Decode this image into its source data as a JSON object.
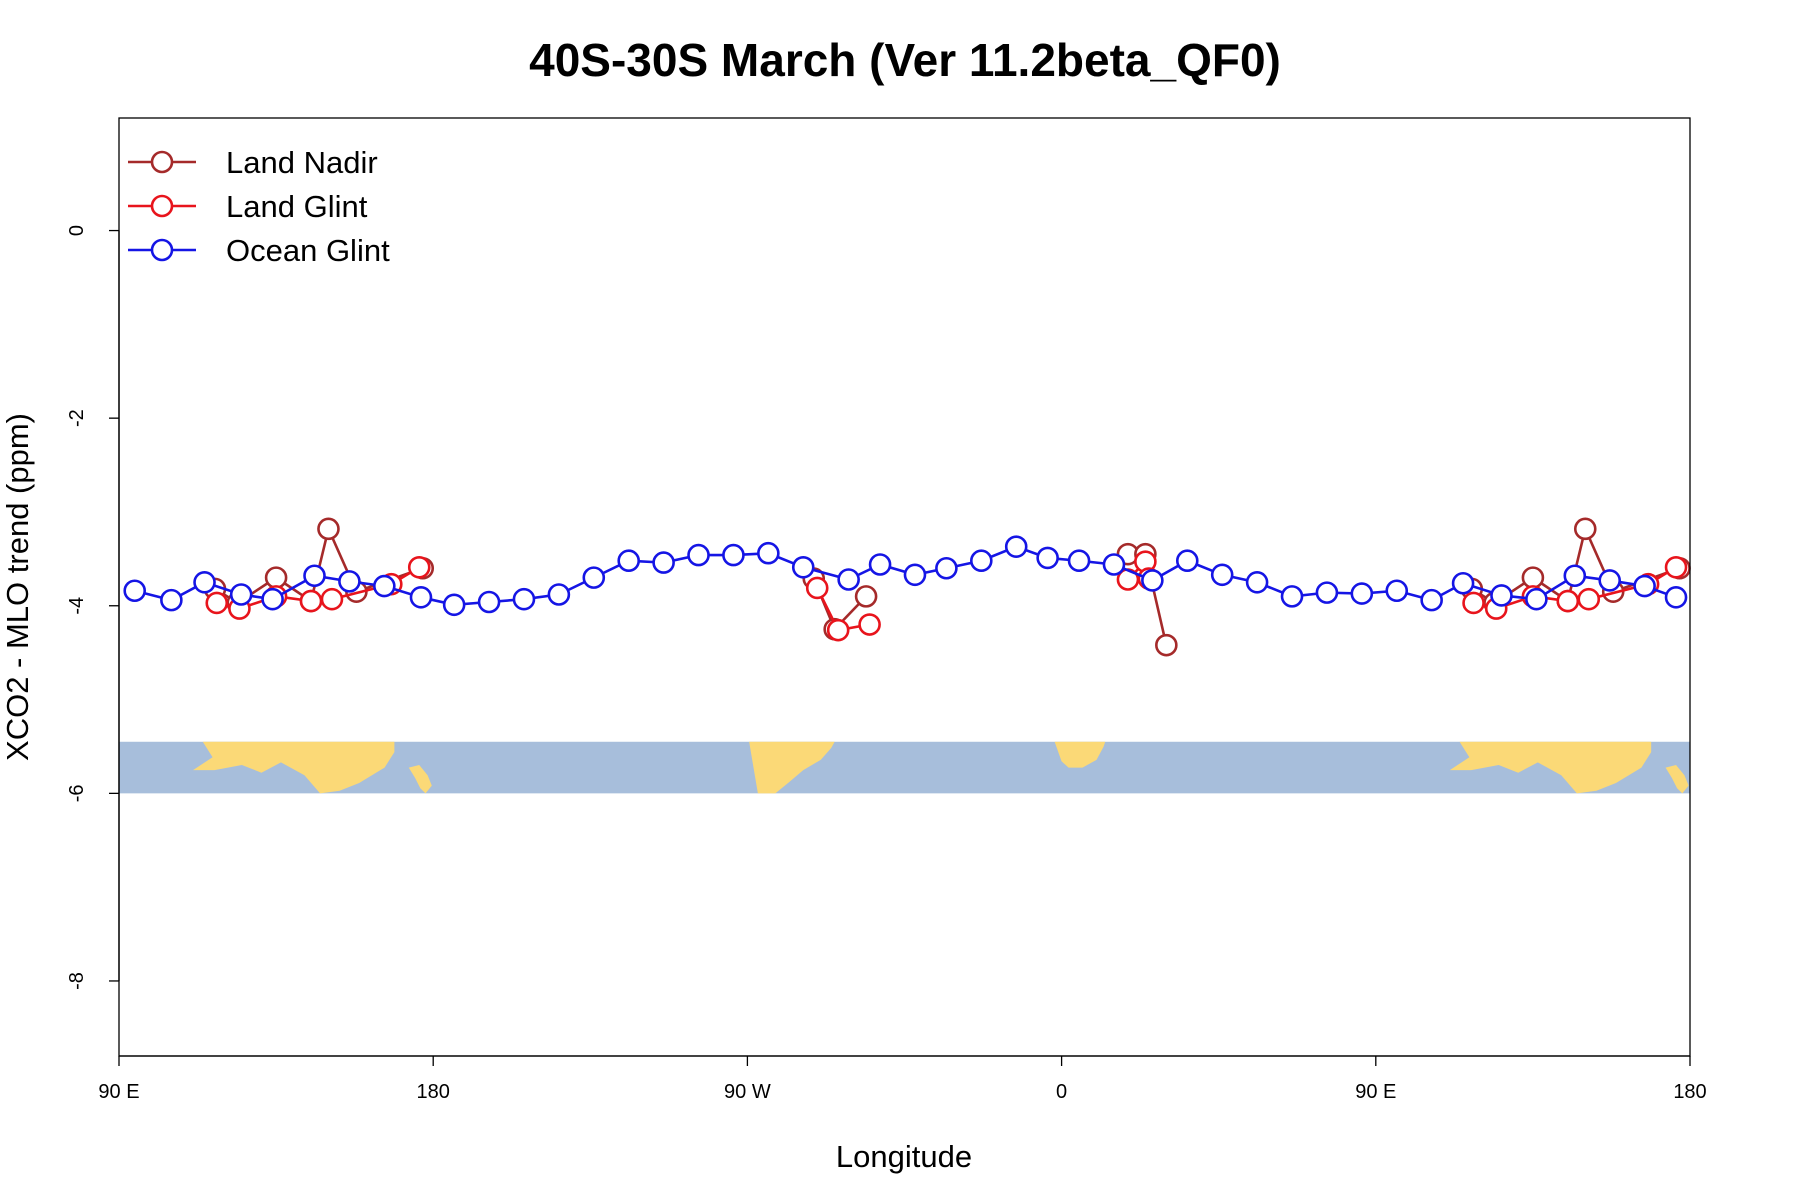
{
  "chart_data": {
    "type": "line",
    "title": "40S-30S March (Ver 11.2beta_QF0)",
    "xlabel": "Longitude",
    "ylabel": "XCO2 - MLO trend (ppm)",
    "x_axis_note": "longitude wraps: 90E -> 180 -> 90W -> 0 -> 90E -> 180",
    "xlim": [
      90,
      540
    ],
    "ylim": [
      -8.8,
      1.2
    ],
    "x_ticks": [
      {
        "value": 90,
        "label": "90 E"
      },
      {
        "value": 180,
        "label": "180"
      },
      {
        "value": 270,
        "label": "90 W"
      },
      {
        "value": 360,
        "label": "0"
      },
      {
        "value": 450,
        "label": "90 E"
      },
      {
        "value": 540,
        "label": "180"
      }
    ],
    "y_ticks": [
      {
        "value": 0,
        "label": "0"
      },
      {
        "value": -2,
        "label": "-2"
      },
      {
        "value": -4,
        "label": "-4"
      },
      {
        "value": -6,
        "label": "-6"
      },
      {
        "value": -8,
        "label": "-8"
      }
    ],
    "grid": false,
    "legend_position": "top-left",
    "map_strip": {
      "y_top": -5.45,
      "y_bottom": -6.0,
      "ocean_color": "#a7bedb",
      "land_color": "#fbd977"
    },
    "series": [
      {
        "name": "Land Nadir",
        "color": "#a52a2a",
        "segments": [
          [
            [
              117.5,
              -3.82
            ],
            [
              124,
              -3.97
            ],
            [
              135,
              -3.7
            ],
            [
              145,
              -3.95
            ],
            [
              150,
              -3.18
            ],
            [
              158,
              -3.85
            ],
            [
              177,
              -3.6
            ]
          ],
          [
            [
              289,
              -3.71
            ],
            [
              295,
              -4.25
            ],
            [
              304,
              -3.9
            ]
          ],
          [
            [
              379,
              -3.45
            ],
            [
              384,
              -3.45
            ],
            [
              390,
              -4.42
            ]
          ],
          [
            [
              477.5,
              -3.82
            ],
            [
              484,
              -3.97
            ],
            [
              495,
              -3.7
            ],
            [
              505,
              -3.95
            ],
            [
              510,
              -3.18
            ],
            [
              518,
              -3.85
            ],
            [
              537,
              -3.6
            ]
          ]
        ]
      },
      {
        "name": "Land Glint",
        "color": "#e8141c",
        "segments": [
          [
            [
              118,
              -3.97
            ],
            [
              124.5,
              -4.03
            ],
            [
              135,
              -3.9
            ],
            [
              145,
              -3.95
            ],
            [
              151,
              -3.93
            ],
            [
              168,
              -3.77
            ],
            [
              176,
              -3.59
            ]
          ],
          [
            [
              290,
              -3.81
            ],
            [
              296,
              -4.26
            ],
            [
              305,
              -4.2
            ]
          ],
          [
            [
              379,
              -3.72
            ],
            [
              384,
              -3.53
            ],
            [
              385,
              -3.71
            ]
          ],
          [
            [
              478,
              -3.97
            ],
            [
              484.5,
              -4.03
            ],
            [
              495,
              -3.9
            ],
            [
              505,
              -3.95
            ],
            [
              511,
              -3.93
            ],
            [
              528,
              -3.77
            ],
            [
              536,
              -3.59
            ]
          ]
        ]
      },
      {
        "name": "Ocean Glint",
        "color": "#1515e5",
        "segments": [
          [
            [
              94.5,
              -3.84
            ],
            [
              105,
              -3.94
            ],
            [
              114.5,
              -3.75
            ],
            [
              125,
              -3.88
            ],
            [
              134,
              -3.93
            ],
            [
              146,
              -3.68
            ],
            [
              156,
              -3.74
            ],
            [
              166,
              -3.79
            ],
            [
              176.5,
              -3.91
            ],
            [
              186,
              -3.99
            ],
            [
              196,
              -3.96
            ],
            [
              206,
              -3.93
            ],
            [
              216,
              -3.88
            ],
            [
              226,
              -3.7
            ],
            [
              236,
              -3.52
            ],
            [
              246,
              -3.54
            ],
            [
              256,
              -3.46
            ],
            [
              266,
              -3.46
            ],
            [
              276,
              -3.44
            ],
            [
              286,
              -3.59
            ],
            [
              299,
              -3.72
            ],
            [
              308,
              -3.56
            ],
            [
              318,
              -3.67
            ],
            [
              327,
              -3.6
            ],
            [
              337,
              -3.52
            ],
            [
              347,
              -3.37
            ],
            [
              356,
              -3.49
            ],
            [
              365,
              -3.52
            ],
            [
              375,
              -3.56
            ],
            [
              386,
              -3.73
            ],
            [
              396,
              -3.52
            ],
            [
              406,
              -3.67
            ],
            [
              416,
              -3.75
            ],
            [
              426,
              -3.9
            ],
            [
              436,
              -3.86
            ],
            [
              446,
              -3.87
            ],
            [
              456,
              -3.84
            ],
            [
              466,
              -3.94
            ],
            [
              475,
              -3.76
            ],
            [
              486,
              -3.89
            ],
            [
              496,
              -3.93
            ],
            [
              507,
              -3.68
            ],
            [
              517,
              -3.73
            ],
            [
              527,
              -3.79
            ],
            [
              536,
              -3.91
            ]
          ]
        ]
      }
    ]
  }
}
